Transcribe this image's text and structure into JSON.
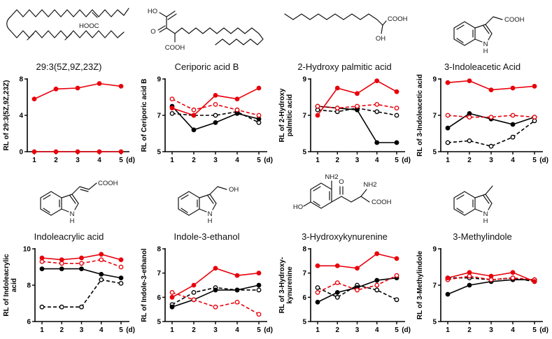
{
  "figure": {
    "background": "#ffffff",
    "accent_red": "#e8000b",
    "accent_black": "#000000"
  },
  "panels": [
    {
      "name": "29:3(5Z,9Z,23Z)",
      "structure_labels": [
        "HOOC"
      ]
    },
    {
      "name": "Ceriporic acid B",
      "structure_labels": [
        "HO",
        "O",
        "COOH"
      ]
    },
    {
      "name": "2-Hydroxy palmitic acid",
      "structure_labels": [
        "OH",
        "COOH"
      ]
    },
    {
      "name": "3-Indoleacetic Acid",
      "structure_labels": [
        "COOH",
        "N",
        "H"
      ]
    },
    {
      "name": "Indoleacrylic acid",
      "structure_labels": [
        "COOH",
        "N",
        "H"
      ]
    },
    {
      "name": "Indole-3-ethanol",
      "structure_labels": [
        "OH",
        "N",
        "H"
      ]
    },
    {
      "name": "3-Hydroxykynurenine",
      "structure_labels": [
        "HO",
        "NH2",
        "O",
        "NH2",
        "COOH"
      ]
    },
    {
      "name": "3-Methylindole",
      "structure_labels": [
        "N",
        "H"
      ]
    }
  ],
  "chart_data": [
    {
      "type": "line",
      "title": "29:3(5Z,9Z,23Z)",
      "ylabel": "RL of 29:3(5Z,9Z,23Z)",
      "xlabel": "(d)",
      "x": [
        1,
        2,
        3,
        4,
        5
      ],
      "ylim": [
        0,
        8
      ],
      "yticks": [
        0,
        4,
        8
      ],
      "grid": false,
      "series": [
        {
          "name": "red-solid",
          "color": "#e8000b",
          "style": "solid",
          "marker": "filled",
          "values": [
            5.8,
            6.9,
            7.0,
            7.5,
            7.2
          ]
        },
        {
          "name": "red-baseline",
          "color": "#e8000b",
          "style": "solid",
          "marker": "filled",
          "values": [
            0,
            0,
            0,
            0,
            0
          ]
        }
      ]
    },
    {
      "type": "line",
      "title": "Ceriporic acid B",
      "ylabel": "RL of Ceriporic acid B",
      "xlabel": "(d)",
      "x": [
        1,
        2,
        3,
        4,
        5
      ],
      "ylim": [
        5,
        9
      ],
      "yticks": [
        5,
        7,
        9
      ],
      "grid": false,
      "series": [
        {
          "name": "red-solid",
          "color": "#e8000b",
          "style": "solid",
          "marker": "filled",
          "values": [
            7.4,
            7.0,
            8.1,
            7.9,
            8.5
          ]
        },
        {
          "name": "red-dashed",
          "color": "#e8000b",
          "style": "dashed",
          "marker": "open",
          "values": [
            7.9,
            7.3,
            7.6,
            7.3,
            7.0
          ]
        },
        {
          "name": "black-solid",
          "color": "#000000",
          "style": "solid",
          "marker": "filled",
          "values": [
            7.5,
            6.2,
            6.6,
            7.1,
            6.8
          ]
        },
        {
          "name": "black-dashed",
          "color": "#000000",
          "style": "dashed",
          "marker": "open",
          "values": [
            7.1,
            7.0,
            7.0,
            7.2,
            6.6
          ]
        }
      ]
    },
    {
      "type": "line",
      "title": "2-Hydroxy palmitic acid",
      "ylabel": "RL of 2-Hydroxy\npalmitic acid",
      "xlabel": "(d)",
      "x": [
        1,
        2,
        3,
        4,
        5
      ],
      "ylim": [
        5,
        9
      ],
      "yticks": [
        5,
        7,
        9
      ],
      "grid": false,
      "series": [
        {
          "name": "red-solid",
          "color": "#e8000b",
          "style": "solid",
          "marker": "filled",
          "values": [
            7.0,
            8.5,
            8.2,
            8.9,
            8.3
          ]
        },
        {
          "name": "red-dashed",
          "color": "#e8000b",
          "style": "dashed",
          "marker": "open",
          "values": [
            7.5,
            7.4,
            7.5,
            7.6,
            7.4
          ]
        },
        {
          "name": "black-solid",
          "color": "#000000",
          "style": "solid",
          "marker": "filled",
          "values": [
            7.5,
            7.4,
            7.3,
            5.5,
            5.5
          ]
        },
        {
          "name": "black-dashed",
          "color": "#000000",
          "style": "dashed",
          "marker": "open",
          "values": [
            7.3,
            7.2,
            7.4,
            7.2,
            7.0
          ]
        }
      ]
    },
    {
      "type": "line",
      "title": "3-Indoleacetic Acid",
      "ylabel": "RL of 3-Indoleacetic acid",
      "xlabel": "(d)",
      "x": [
        1,
        2,
        3,
        4,
        5
      ],
      "ylim": [
        5,
        9
      ],
      "yticks": [
        5,
        7,
        9
      ],
      "grid": false,
      "series": [
        {
          "name": "red-solid",
          "color": "#e8000b",
          "style": "solid",
          "marker": "filled",
          "values": [
            8.8,
            8.9,
            8.4,
            8.5,
            8.6
          ]
        },
        {
          "name": "red-dashed",
          "color": "#e8000b",
          "style": "dashed",
          "marker": "open",
          "values": [
            7.0,
            6.9,
            6.9,
            7.0,
            6.9
          ]
        },
        {
          "name": "black-solid",
          "color": "#000000",
          "style": "solid",
          "marker": "filled",
          "values": [
            6.3,
            7.1,
            6.8,
            6.5,
            6.9
          ]
        },
        {
          "name": "black-dashed",
          "color": "#000000",
          "style": "dashed",
          "marker": "open",
          "values": [
            5.5,
            5.6,
            5.3,
            5.8,
            6.7
          ]
        }
      ]
    },
    {
      "type": "line",
      "title": "Indoleacrylic acid",
      "ylabel": "RL of Indoleacrylic\nacid",
      "xlabel": "(d)",
      "x": [
        1,
        2,
        3,
        4,
        5
      ],
      "ylim": [
        6,
        10
      ],
      "yticks": [
        6,
        8,
        10
      ],
      "grid": false,
      "series": [
        {
          "name": "red-solid",
          "color": "#e8000b",
          "style": "solid",
          "marker": "filled",
          "values": [
            9.5,
            9.4,
            9.5,
            9.7,
            9.4
          ]
        },
        {
          "name": "red-dashed",
          "color": "#e8000b",
          "style": "dashed",
          "marker": "open",
          "values": [
            9.3,
            9.2,
            9.2,
            9.4,
            9.0
          ]
        },
        {
          "name": "black-solid",
          "color": "#000000",
          "style": "solid",
          "marker": "filled",
          "values": [
            8.9,
            8.9,
            8.9,
            8.6,
            8.4
          ]
        },
        {
          "name": "black-dashed",
          "color": "#000000",
          "style": "dashed",
          "marker": "open",
          "values": [
            6.8,
            6.8,
            6.8,
            8.3,
            8.1
          ]
        }
      ]
    },
    {
      "type": "line",
      "title": "Indole-3-ethanol",
      "ylabel": "RL of Indole-3-ethanol",
      "xlabel": "(d)",
      "x": [
        1,
        2,
        3,
        4,
        5
      ],
      "ylim": [
        5,
        8
      ],
      "yticks": [
        5,
        6,
        7,
        8
      ],
      "grid": false,
      "series": [
        {
          "name": "red-solid",
          "color": "#e8000b",
          "style": "solid",
          "marker": "filled",
          "values": [
            6.0,
            6.5,
            7.2,
            6.9,
            7.0
          ]
        },
        {
          "name": "red-dashed",
          "color": "#e8000b",
          "style": "dashed",
          "marker": "open",
          "values": [
            6.2,
            5.9,
            5.6,
            5.8,
            5.3
          ]
        },
        {
          "name": "black-solid",
          "color": "#000000",
          "style": "solid",
          "marker": "filled",
          "values": [
            5.6,
            5.9,
            6.3,
            6.3,
            6.5
          ]
        },
        {
          "name": "black-dashed",
          "color": "#000000",
          "style": "dashed",
          "marker": "open",
          "values": [
            5.7,
            6.2,
            6.4,
            6.3,
            6.3
          ]
        }
      ]
    },
    {
      "type": "line",
      "title": "3-Hydroxykynurenine",
      "ylabel": "RL of 3-Hydroxy-\nkynurenine",
      "xlabel": "(d)",
      "x": [
        1,
        2,
        3,
        4,
        5
      ],
      "ylim": [
        5,
        8
      ],
      "yticks": [
        5,
        6,
        7,
        8
      ],
      "grid": false,
      "series": [
        {
          "name": "red-solid",
          "color": "#e8000b",
          "style": "solid",
          "marker": "filled",
          "values": [
            7.3,
            7.3,
            7.2,
            7.8,
            7.6
          ]
        },
        {
          "name": "red-dashed",
          "color": "#e8000b",
          "style": "dashed",
          "marker": "open",
          "values": [
            6.2,
            6.6,
            6.3,
            6.5,
            6.9
          ]
        },
        {
          "name": "black-solid",
          "color": "#000000",
          "style": "solid",
          "marker": "filled",
          "values": [
            5.8,
            6.2,
            6.4,
            6.7,
            6.8
          ]
        },
        {
          "name": "black-dashed",
          "color": "#000000",
          "style": "dashed",
          "marker": "open",
          "values": [
            6.4,
            6.0,
            6.5,
            6.3,
            5.9
          ]
        }
      ]
    },
    {
      "type": "line",
      "title": "3-Methylindole",
      "ylabel": "RL of 3-Methylindole",
      "xlabel": "(d)",
      "x": [
        1,
        2,
        3,
        4,
        5
      ],
      "ylim": [
        5,
        9
      ],
      "yticks": [
        5,
        7,
        9
      ],
      "grid": false,
      "series": [
        {
          "name": "red-solid",
          "color": "#e8000b",
          "style": "solid",
          "marker": "filled",
          "values": [
            7.4,
            7.7,
            7.5,
            7.7,
            7.2
          ]
        },
        {
          "name": "red-dashed",
          "color": "#e8000b",
          "style": "dashed",
          "marker": "open",
          "values": [
            7.3,
            7.5,
            7.3,
            7.4,
            7.3
          ]
        },
        {
          "name": "black-solid",
          "color": "#000000",
          "style": "solid",
          "marker": "filled",
          "values": [
            6.5,
            7.0,
            7.2,
            7.3,
            7.3
          ]
        },
        {
          "name": "black-dashed",
          "color": "#000000",
          "style": "dashed",
          "marker": "open",
          "values": [
            7.4,
            7.4,
            7.3,
            7.4,
            7.2
          ]
        }
      ]
    }
  ]
}
